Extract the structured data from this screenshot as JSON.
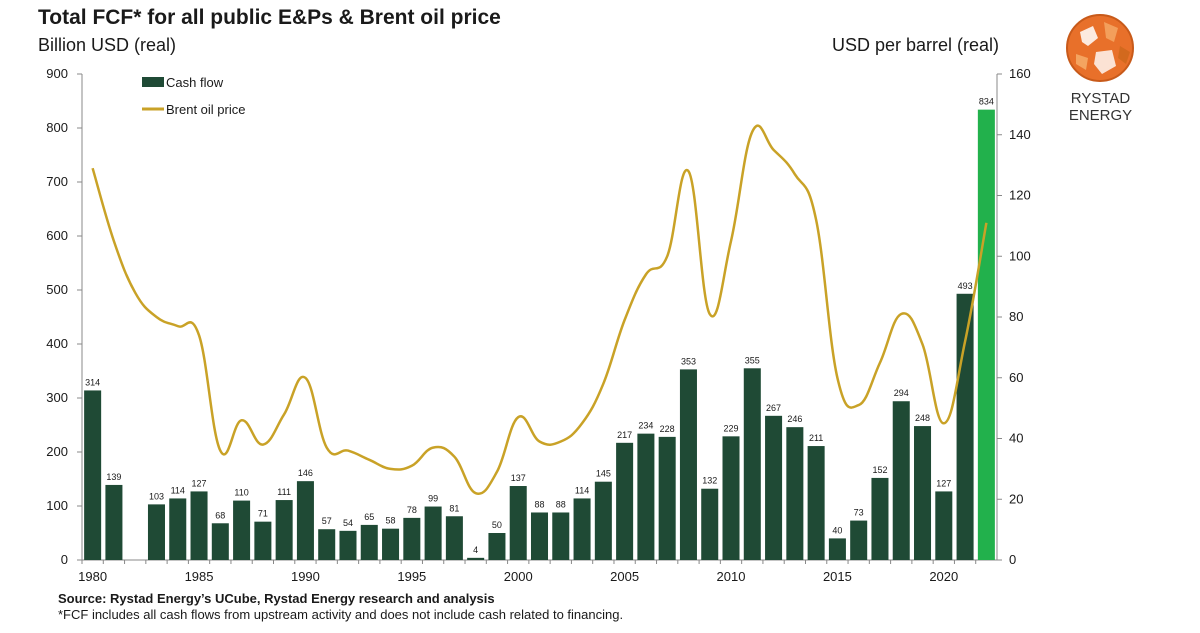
{
  "title": "Total FCF* for all public E&Ps & Brent oil price",
  "ylabel_left": "Billion USD (real)",
  "ylabel_right": "USD per barrel (real)",
  "source": "Source: Rystad Energy’s UCube, Rystad Energy research and analysis",
  "footnote": "*FCF includes all cash flows from upstream activity and does not include cash related to financing.",
  "logo_text": "RYSTAD ENERGY",
  "colors": {
    "bar": "#1f4a35",
    "bar_highlight": "#22b14c",
    "line": "#c9a227",
    "logo_orange": "#e8702a"
  },
  "chart_data": {
    "type": "bar",
    "categories": [
      1980,
      1981,
      1982,
      1983,
      1984,
      1985,
      1986,
      1987,
      1988,
      1989,
      1990,
      1991,
      1992,
      1993,
      1994,
      1995,
      1996,
      1997,
      1998,
      1999,
      2000,
      2001,
      2002,
      2003,
      2004,
      2005,
      2006,
      2007,
      2008,
      2009,
      2010,
      2011,
      2012,
      2013,
      2014,
      2015,
      2016,
      2017,
      2018,
      2019,
      2020,
      2021,
      2022
    ],
    "series": [
      {
        "name": "Cash flow",
        "axis": "left",
        "type": "bar",
        "values": [
          314,
          139,
          null,
          103,
          114,
          127,
          68,
          110,
          71,
          111,
          146,
          57,
          54,
          65,
          58,
          78,
          99,
          81,
          4,
          50,
          137,
          88,
          88,
          114,
          145,
          217,
          234,
          228,
          353,
          132,
          229,
          355,
          267,
          246,
          211,
          40,
          73,
          152,
          294,
          248,
          127,
          493,
          834
        ],
        "labels": [
          "314",
          "139",
          "",
          "103",
          "114",
          "127",
          "68",
          "110",
          "71",
          "111",
          "146",
          "57",
          "54",
          "65",
          "58",
          "78",
          "99",
          "81",
          "4",
          "50",
          "137",
          "88",
          "88",
          "114",
          "145",
          "217",
          "234",
          "228",
          "353",
          "132",
          "229",
          "355",
          "267",
          "246",
          "211",
          "40",
          "73",
          "152",
          "294",
          "248",
          "127",
          "493",
          "834"
        ]
      },
      {
        "name": "Brent oil price",
        "axis": "right",
        "type": "line",
        "values": [
          129,
          105,
          88,
          80,
          77,
          74,
          36,
          46,
          38,
          48,
          60,
          37,
          36,
          33,
          30,
          31,
          37,
          34,
          22,
          29,
          47,
          39,
          39,
          45,
          58,
          79,
          94,
          100,
          128,
          81,
          105,
          141,
          135,
          127,
          112,
          60,
          51,
          65,
          81,
          71,
          45,
          72,
          111
        ]
      }
    ],
    "x_ticks": [
      1980,
      1985,
      1990,
      1995,
      2000,
      2005,
      2010,
      2015,
      2020
    ],
    "y_left_ticks": [
      0,
      100,
      200,
      300,
      400,
      500,
      600,
      700,
      800,
      900
    ],
    "y_right_ticks": [
      0,
      20,
      40,
      60,
      80,
      100,
      120,
      140,
      160
    ],
    "ylim_left": [
      0,
      900
    ],
    "ylim_right": [
      0,
      160
    ],
    "legend": "top-left"
  }
}
